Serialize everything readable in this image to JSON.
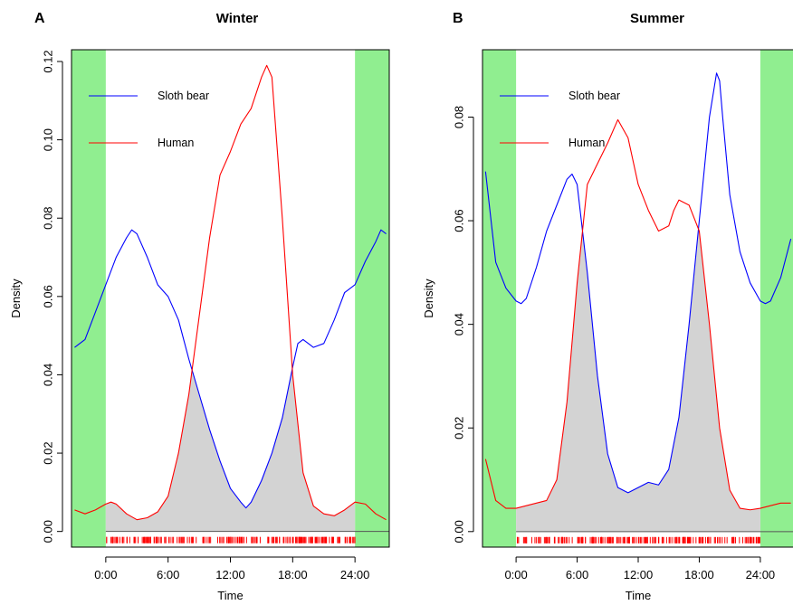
{
  "chart_data": [
    {
      "type": "line",
      "panel_letter": "A",
      "title": "Winter",
      "xlabel": "Time",
      "ylabel": "Density",
      "xlim": [
        -3.3,
        27.3
      ],
      "ylim": [
        -0.004,
        0.123
      ],
      "x_ticks": [
        {
          "value": 0,
          "label": "0:00"
        },
        {
          "value": 6,
          "label": "6:00"
        },
        {
          "value": 12,
          "label": "12:00"
        },
        {
          "value": 18,
          "label": "18:00"
        },
        {
          "value": 24,
          "label": "24:00"
        }
      ],
      "y_ticks": [
        {
          "value": 0.0,
          "label": "0.00"
        },
        {
          "value": 0.02,
          "label": "0.02"
        },
        {
          "value": 0.04,
          "label": "0.04"
        },
        {
          "value": 0.06,
          "label": "0.06"
        },
        {
          "value": 0.08,
          "label": "0.08"
        },
        {
          "value": 0.1,
          "label": "0.10"
        },
        {
          "value": 0.12,
          "label": "0.12"
        }
      ],
      "shaded_ranges": [
        [
          -3.3,
          0
        ],
        [
          24,
          27.3
        ]
      ],
      "legend": {
        "placement": "top-left",
        "entries": [
          {
            "name": "Sloth bear",
            "color": "#0000ff"
          },
          {
            "name": "Human",
            "color": "#ff0000"
          }
        ]
      },
      "series": [
        {
          "name": "Sloth bear",
          "color": "#0000ff",
          "x": [
            -3.0,
            -2.0,
            -1.0,
            0.0,
            1.0,
            2.0,
            2.5,
            3.0,
            4.0,
            5.0,
            6.0,
            7.0,
            8.0,
            9.0,
            10.0,
            11.0,
            12.0,
            13.0,
            13.5,
            14.0,
            15.0,
            16.0,
            17.0,
            18.0,
            18.5,
            19.0,
            20.0,
            21.0,
            22.0,
            23.0,
            24.0,
            25.0,
            26.0,
            26.5,
            27.0
          ],
          "y": [
            0.047,
            0.049,
            0.056,
            0.063,
            0.07,
            0.075,
            0.077,
            0.076,
            0.07,
            0.063,
            0.06,
            0.054,
            0.044,
            0.035,
            0.026,
            0.018,
            0.011,
            0.0075,
            0.006,
            0.0075,
            0.013,
            0.02,
            0.029,
            0.042,
            0.048,
            0.049,
            0.047,
            0.048,
            0.054,
            0.061,
            0.063,
            0.069,
            0.074,
            0.077,
            0.076
          ]
        },
        {
          "name": "Human",
          "color": "#ff0000",
          "x": [
            -3.0,
            -2.0,
            -1.0,
            0.0,
            0.5,
            1.0,
            2.0,
            3.0,
            4.0,
            5.0,
            6.0,
            7.0,
            8.0,
            9.0,
            10.0,
            11.0,
            12.0,
            13.0,
            14.0,
            15.0,
            15.5,
            16.0,
            17.0,
            18.0,
            19.0,
            20.0,
            21.0,
            22.0,
            23.0,
            24.0,
            25.0,
            26.0,
            27.0
          ],
          "y": [
            0.0055,
            0.0045,
            0.0055,
            0.007,
            0.0075,
            0.007,
            0.0045,
            0.003,
            0.0035,
            0.005,
            0.009,
            0.02,
            0.035,
            0.055,
            0.075,
            0.091,
            0.097,
            0.104,
            0.108,
            0.116,
            0.119,
            0.116,
            0.08,
            0.04,
            0.015,
            0.0065,
            0.0045,
            0.004,
            0.0055,
            0.0075,
            0.007,
            0.0045,
            0.003
          ]
        }
      ],
      "rug": [
        {
          "name": "Sloth bear",
          "color": "#0000ff",
          "from": 0,
          "to": 24
        },
        {
          "name": "Human",
          "color": "#ff0000",
          "from": 0,
          "to": 24
        }
      ]
    },
    {
      "type": "line",
      "panel_letter": "B",
      "title": "Summer",
      "xlabel": "Time",
      "ylabel": "Density",
      "xlim": [
        -3.3,
        27.3
      ],
      "ylim": [
        -0.003,
        0.093
      ],
      "x_ticks": [
        {
          "value": 0,
          "label": "0:00"
        },
        {
          "value": 6,
          "label": "6:00"
        },
        {
          "value": 12,
          "label": "12:00"
        },
        {
          "value": 18,
          "label": "18:00"
        },
        {
          "value": 24,
          "label": "24:00"
        }
      ],
      "y_ticks": [
        {
          "value": 0.0,
          "label": "0.00"
        },
        {
          "value": 0.02,
          "label": "0.02"
        },
        {
          "value": 0.04,
          "label": "0.04"
        },
        {
          "value": 0.06,
          "label": "0.06"
        },
        {
          "value": 0.08,
          "label": "0.08"
        }
      ],
      "shaded_ranges": [
        [
          -3.3,
          0
        ],
        [
          24,
          27.3
        ]
      ],
      "legend": {
        "placement": "top-left",
        "entries": [
          {
            "name": "Sloth bear",
            "color": "#0000ff"
          },
          {
            "name": "Human",
            "color": "#ff0000"
          }
        ]
      },
      "series": [
        {
          "name": "Sloth bear",
          "color": "#0000ff",
          "x": [
            -3.0,
            -2.0,
            -1.0,
            0.0,
            0.5,
            1.0,
            2.0,
            3.0,
            4.0,
            5.0,
            5.5,
            6.0,
            7.0,
            8.0,
            9.0,
            10.0,
            11.0,
            12.0,
            13.0,
            14.0,
            15.0,
            16.0,
            17.0,
            18.0,
            19.0,
            19.7,
            20.0,
            20.3,
            21.0,
            22.0,
            23.0,
            24.0,
            24.5,
            25.0,
            26.0,
            27.0
          ],
          "y": [
            0.0695,
            0.052,
            0.047,
            0.0445,
            0.044,
            0.045,
            0.051,
            0.058,
            0.063,
            0.068,
            0.069,
            0.067,
            0.05,
            0.03,
            0.015,
            0.0085,
            0.0075,
            0.0085,
            0.0095,
            0.009,
            0.012,
            0.022,
            0.04,
            0.06,
            0.08,
            0.0885,
            0.087,
            0.08,
            0.065,
            0.054,
            0.048,
            0.0445,
            0.044,
            0.0445,
            0.049,
            0.0565
          ]
        },
        {
          "name": "Human",
          "color": "#ff0000",
          "x": [
            -3.0,
            -2.0,
            -1.0,
            0.0,
            1.0,
            2.0,
            3.0,
            4.0,
            5.0,
            6.0,
            7.0,
            8.0,
            9.0,
            10.0,
            11.0,
            12.0,
            13.0,
            14.0,
            15.0,
            15.5,
            16.0,
            16.5,
            17.0,
            18.0,
            19.0,
            20.0,
            21.0,
            22.0,
            23.0,
            24.0,
            25.0,
            26.0,
            27.0
          ],
          "y": [
            0.014,
            0.006,
            0.0045,
            0.0045,
            0.005,
            0.0055,
            0.006,
            0.01,
            0.025,
            0.048,
            0.067,
            0.071,
            0.075,
            0.0795,
            0.076,
            0.067,
            0.062,
            0.058,
            0.059,
            0.062,
            0.064,
            0.0635,
            0.063,
            0.058,
            0.04,
            0.02,
            0.008,
            0.0045,
            0.0042,
            0.0045,
            0.005,
            0.0055,
            0.0055
          ]
        }
      ],
      "rug": [
        {
          "name": "Sloth bear",
          "color": "#0000ff",
          "from": 0,
          "to": 24
        },
        {
          "name": "Human",
          "color": "#ff0000",
          "from": 0,
          "to": 24
        }
      ]
    }
  ],
  "colors": {
    "night_shading": "#90ee90",
    "overlap_fill": "#d3d3d3",
    "sloth_bear": "#0000ff",
    "human": "#ff0000",
    "baseline": "#555555"
  }
}
